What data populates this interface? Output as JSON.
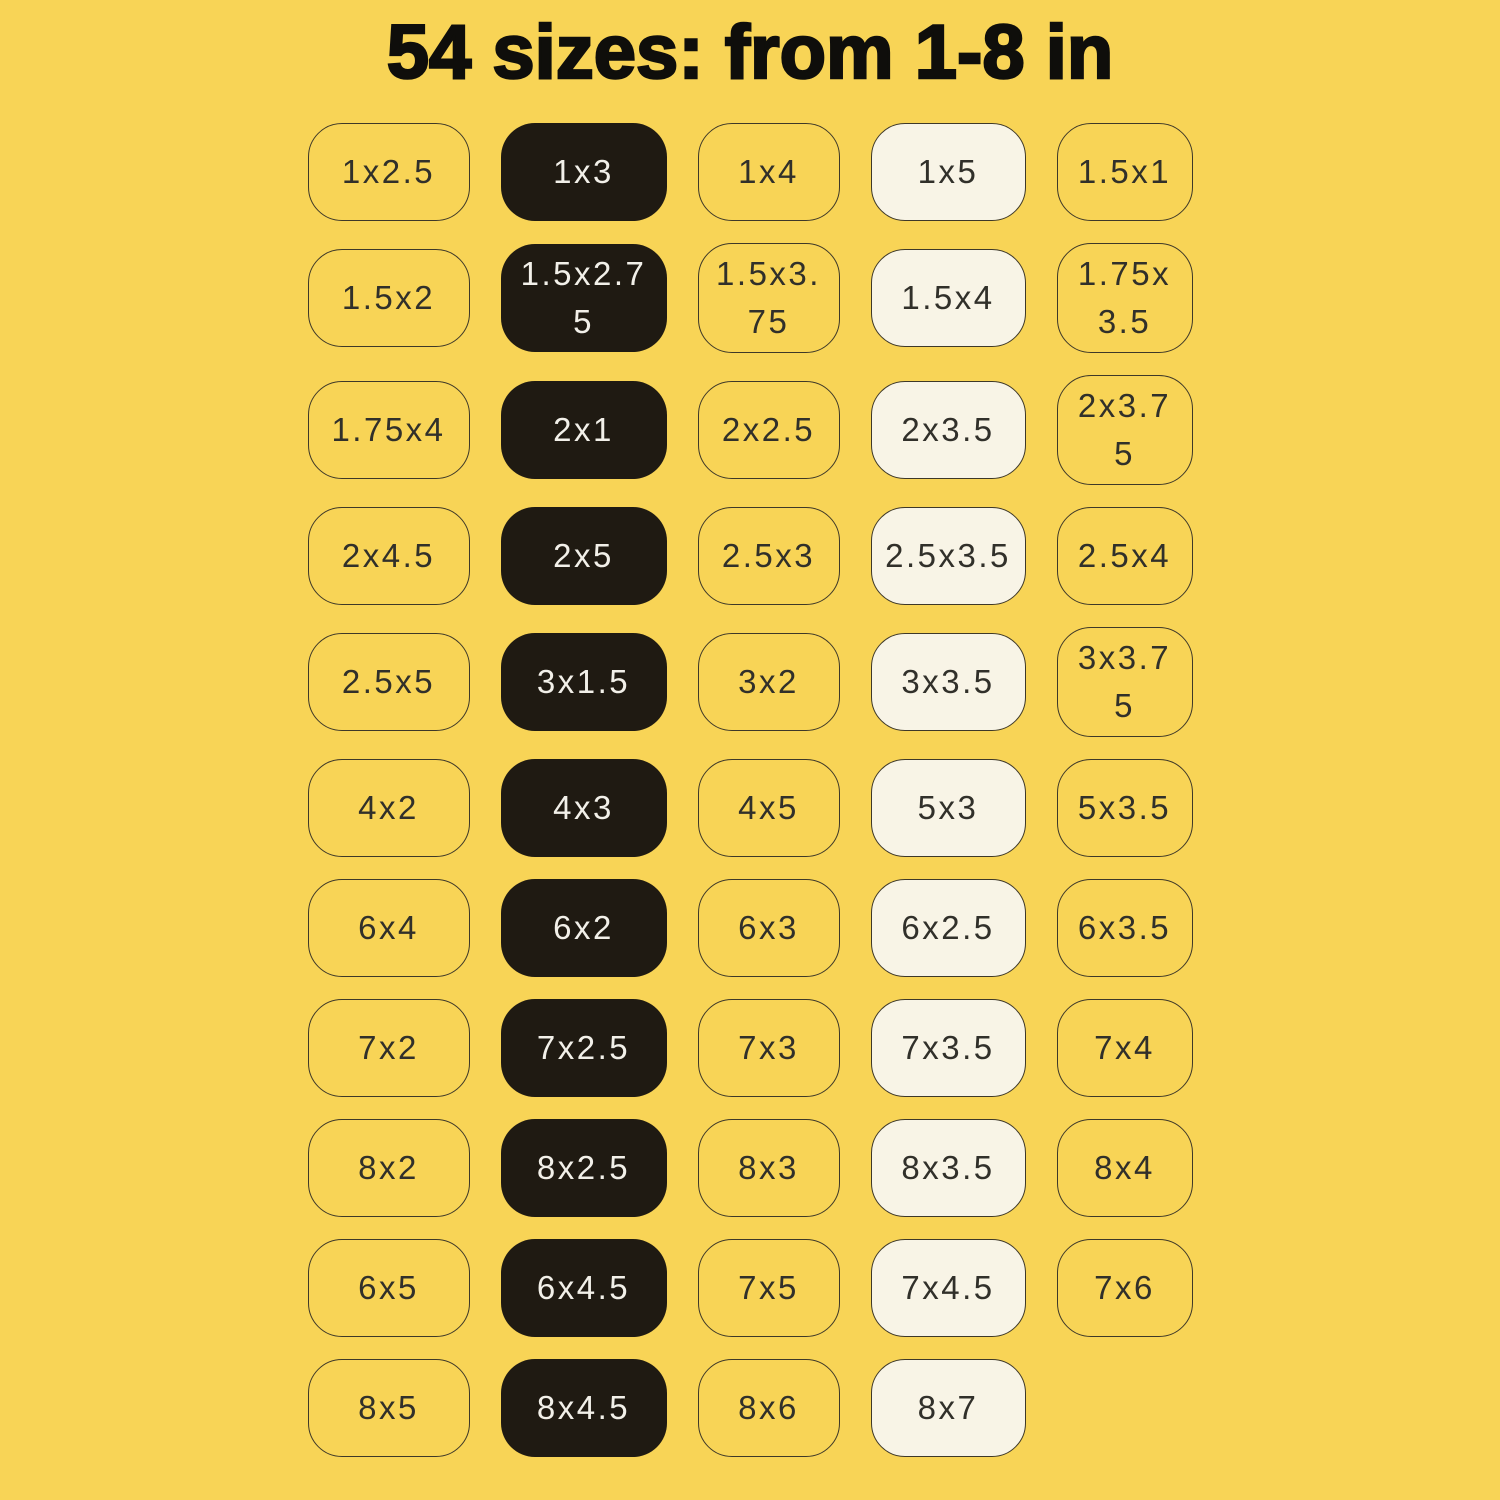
{
  "title": "54 sizes: from 1-8 in",
  "colors": {
    "background": "#F8D456",
    "title_text": "#0F0E0B",
    "pill_black": "#1F1A12",
    "pill_cream": "#F8F4E6",
    "pill_border": "#3E3828",
    "text_dark": "#31302A",
    "text_light": "#F2F0E9"
  },
  "grid": {
    "columns": 5,
    "rows": [
      {
        "cells": [
          {
            "label": "1x2.5",
            "variant": "outline"
          },
          {
            "label": "1x3",
            "variant": "black"
          },
          {
            "label": "1x4",
            "variant": "outline"
          },
          {
            "label": "1x5",
            "variant": "cream"
          },
          {
            "label": "1.5x1",
            "variant": "outline"
          }
        ]
      },
      {
        "cells": [
          {
            "label": "1.5x2",
            "variant": "outline"
          },
          {
            "label": "1.5x2.75",
            "variant": "black"
          },
          {
            "label": "1.5x3.75",
            "variant": "outline"
          },
          {
            "label": "1.5x4",
            "variant": "cream"
          },
          {
            "label": "1.75x3.5",
            "variant": "outline"
          }
        ]
      },
      {
        "cells": [
          {
            "label": "1.75x4",
            "variant": "outline"
          },
          {
            "label": "2x1",
            "variant": "black"
          },
          {
            "label": "2x2.5",
            "variant": "outline"
          },
          {
            "label": "2x3.5",
            "variant": "cream"
          },
          {
            "label": "2x3.75",
            "variant": "outline"
          }
        ]
      },
      {
        "cells": [
          {
            "label": "2x4.5",
            "variant": "outline"
          },
          {
            "label": "2x5",
            "variant": "black"
          },
          {
            "label": "2.5x3",
            "variant": "outline"
          },
          {
            "label": "2.5x3.5",
            "variant": "cream"
          },
          {
            "label": "2.5x4",
            "variant": "outline"
          }
        ]
      },
      {
        "cells": [
          {
            "label": "2.5x5",
            "variant": "outline"
          },
          {
            "label": "3x1.5",
            "variant": "black"
          },
          {
            "label": "3x2",
            "variant": "outline"
          },
          {
            "label": "3x3.5",
            "variant": "cream"
          },
          {
            "label": "3x3.75",
            "variant": "outline"
          }
        ]
      },
      {
        "cells": [
          {
            "label": "4x2",
            "variant": "outline"
          },
          {
            "label": "4x3",
            "variant": "black"
          },
          {
            "label": "4x5",
            "variant": "outline"
          },
          {
            "label": "5x3",
            "variant": "cream"
          },
          {
            "label": "5x3.5",
            "variant": "outline"
          }
        ]
      },
      {
        "cells": [
          {
            "label": "6x4",
            "variant": "outline"
          },
          {
            "label": "6x2",
            "variant": "black"
          },
          {
            "label": "6x3",
            "variant": "outline"
          },
          {
            "label": "6x2.5",
            "variant": "cream"
          },
          {
            "label": "6x3.5",
            "variant": "outline"
          }
        ]
      },
      {
        "cells": [
          {
            "label": "7x2",
            "variant": "outline"
          },
          {
            "label": "7x2.5",
            "variant": "black"
          },
          {
            "label": "7x3",
            "variant": "outline"
          },
          {
            "label": "7x3.5",
            "variant": "cream"
          },
          {
            "label": "7x4",
            "variant": "outline"
          }
        ]
      },
      {
        "cells": [
          {
            "label": "8x2",
            "variant": "outline"
          },
          {
            "label": "8x2.5",
            "variant": "black"
          },
          {
            "label": "8x3",
            "variant": "outline"
          },
          {
            "label": "8x3.5",
            "variant": "cream"
          },
          {
            "label": "8x4",
            "variant": "outline"
          }
        ]
      },
      {
        "cells": [
          {
            "label": "6x5",
            "variant": "outline"
          },
          {
            "label": "6x4.5",
            "variant": "black"
          },
          {
            "label": "7x5",
            "variant": "outline"
          },
          {
            "label": "7x4.5",
            "variant": "cream"
          },
          {
            "label": "7x6",
            "variant": "outline"
          }
        ]
      },
      {
        "cells": [
          {
            "label": "8x5",
            "variant": "outline"
          },
          {
            "label": "8x4.5",
            "variant": "black"
          },
          {
            "label": "8x6",
            "variant": "outline"
          },
          {
            "label": "8x7",
            "variant": "cream"
          }
        ]
      }
    ]
  }
}
